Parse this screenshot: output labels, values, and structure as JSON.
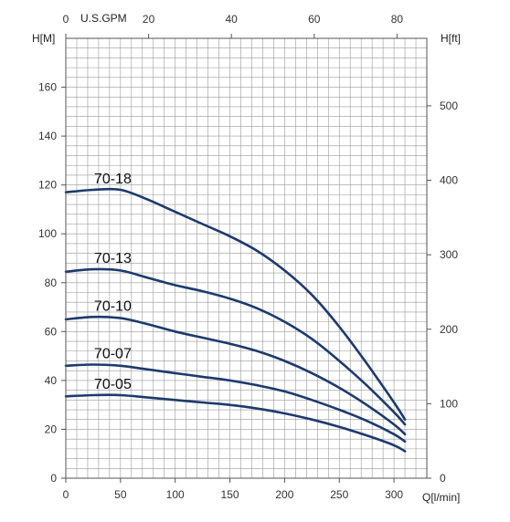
{
  "chart_data": {
    "type": "line",
    "grid": true,
    "axes": {
      "bottom": {
        "label": "Q[l/min]",
        "range": [
          0,
          330
        ],
        "ticks": [
          0,
          50,
          100,
          150,
          200,
          250,
          300
        ]
      },
      "top": {
        "label": "U.S.GPM",
        "range": [
          0,
          87.2
        ],
        "ticks": [
          0,
          20,
          40,
          60,
          80
        ]
      },
      "left": {
        "label": "H[M]",
        "range": [
          0,
          180
        ],
        "ticks": [
          0,
          20,
          40,
          60,
          80,
          100,
          120,
          140,
          160
        ]
      },
      "right": {
        "label": "H[ft]",
        "range": [
          0,
          590.6
        ],
        "ticks": [
          0,
          100,
          200,
          300,
          400,
          500
        ]
      }
    },
    "series": [
      {
        "name": "70-18",
        "x": [
          0,
          25,
          50,
          75,
          100,
          125,
          150,
          175,
          200,
          225,
          250,
          275,
          300,
          310
        ],
        "y": [
          117,
          118,
          118,
          114,
          109,
          104,
          99,
          93,
          85,
          75,
          62,
          47,
          31,
          24
        ]
      },
      {
        "name": "70-13",
        "x": [
          0,
          25,
          50,
          75,
          100,
          125,
          150,
          175,
          200,
          225,
          250,
          275,
          300,
          310
        ],
        "y": [
          84.5,
          85.5,
          85,
          82,
          79,
          76.5,
          73.5,
          69.5,
          64,
          57,
          48,
          38,
          27,
          22
        ]
      },
      {
        "name": "70-10",
        "x": [
          0,
          25,
          50,
          75,
          100,
          125,
          150,
          175,
          200,
          225,
          250,
          275,
          300,
          310
        ],
        "y": [
          65,
          66,
          65.5,
          63,
          60,
          57.5,
          55,
          52,
          48,
          43,
          37,
          30,
          22,
          18
        ]
      },
      {
        "name": "70-07",
        "x": [
          0,
          25,
          50,
          75,
          100,
          125,
          150,
          175,
          200,
          225,
          250,
          275,
          300,
          310
        ],
        "y": [
          46,
          46.5,
          46,
          44.5,
          43,
          41.5,
          40,
          38,
          35.5,
          32,
          28,
          23.5,
          18,
          15
        ]
      },
      {
        "name": "70-05",
        "x": [
          0,
          25,
          50,
          75,
          100,
          125,
          150,
          175,
          200,
          225,
          250,
          275,
          300,
          310
        ],
        "y": [
          33.5,
          34,
          34,
          33,
          32,
          31,
          30,
          28.5,
          26.5,
          24,
          21,
          17.5,
          13.5,
          11
        ]
      }
    ]
  },
  "style": {
    "curve_color": "#1d3a6e",
    "grid_color": "#9a9a9a",
    "frame_color": "#555555"
  }
}
